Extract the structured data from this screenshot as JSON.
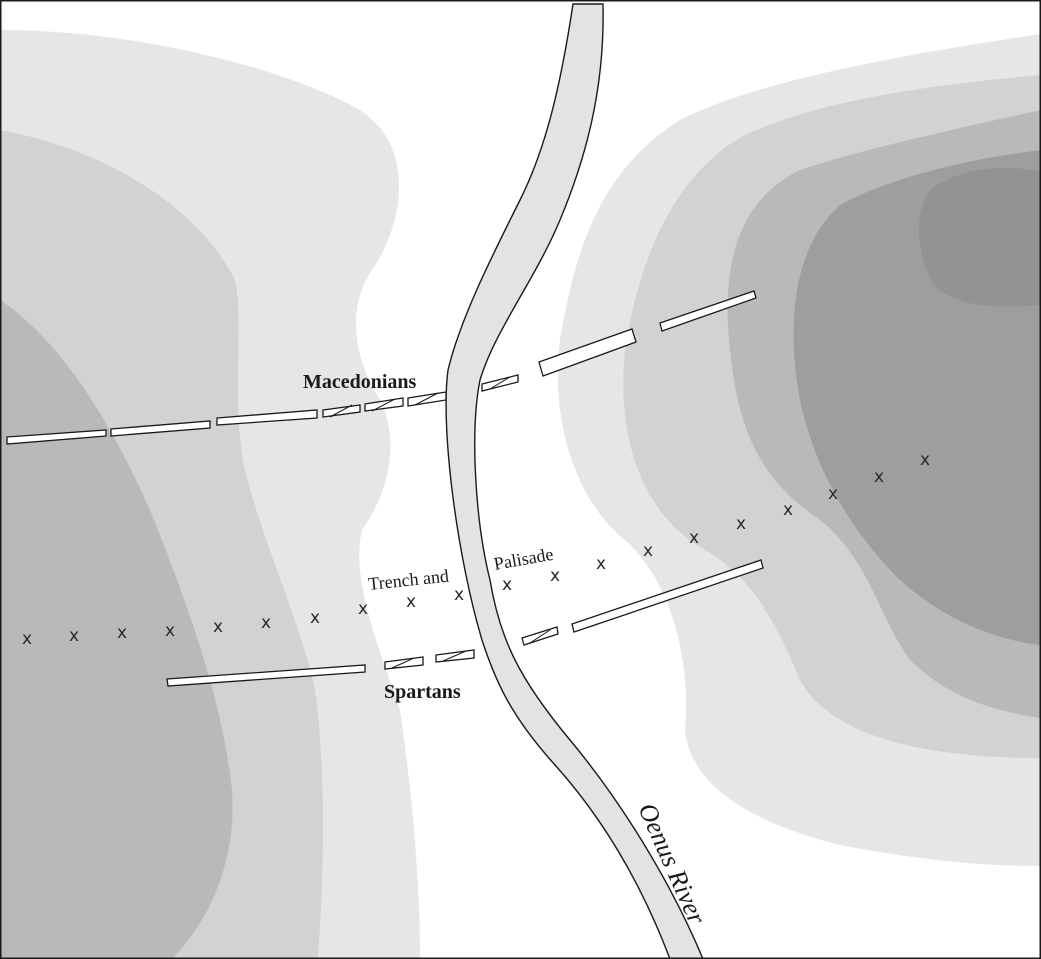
{
  "labels": {
    "macedonians": "Macedonians",
    "spartans": "Spartans",
    "trench": "Trench and",
    "palisade": "Palisade",
    "river": "Oenus River"
  },
  "palisade_marker": "x",
  "colors": {
    "background": "#ffffff",
    "terrain_level_1": "#e6e6e7",
    "terrain_level_2": "#d2d2d4",
    "terrain_level_3": "#b9b9bb",
    "terrain_level_4": "#9e9ea1",
    "river_fill": "#e3e3e4",
    "unit_fill": "#ffffff",
    "ink": "#1a1a1a"
  }
}
